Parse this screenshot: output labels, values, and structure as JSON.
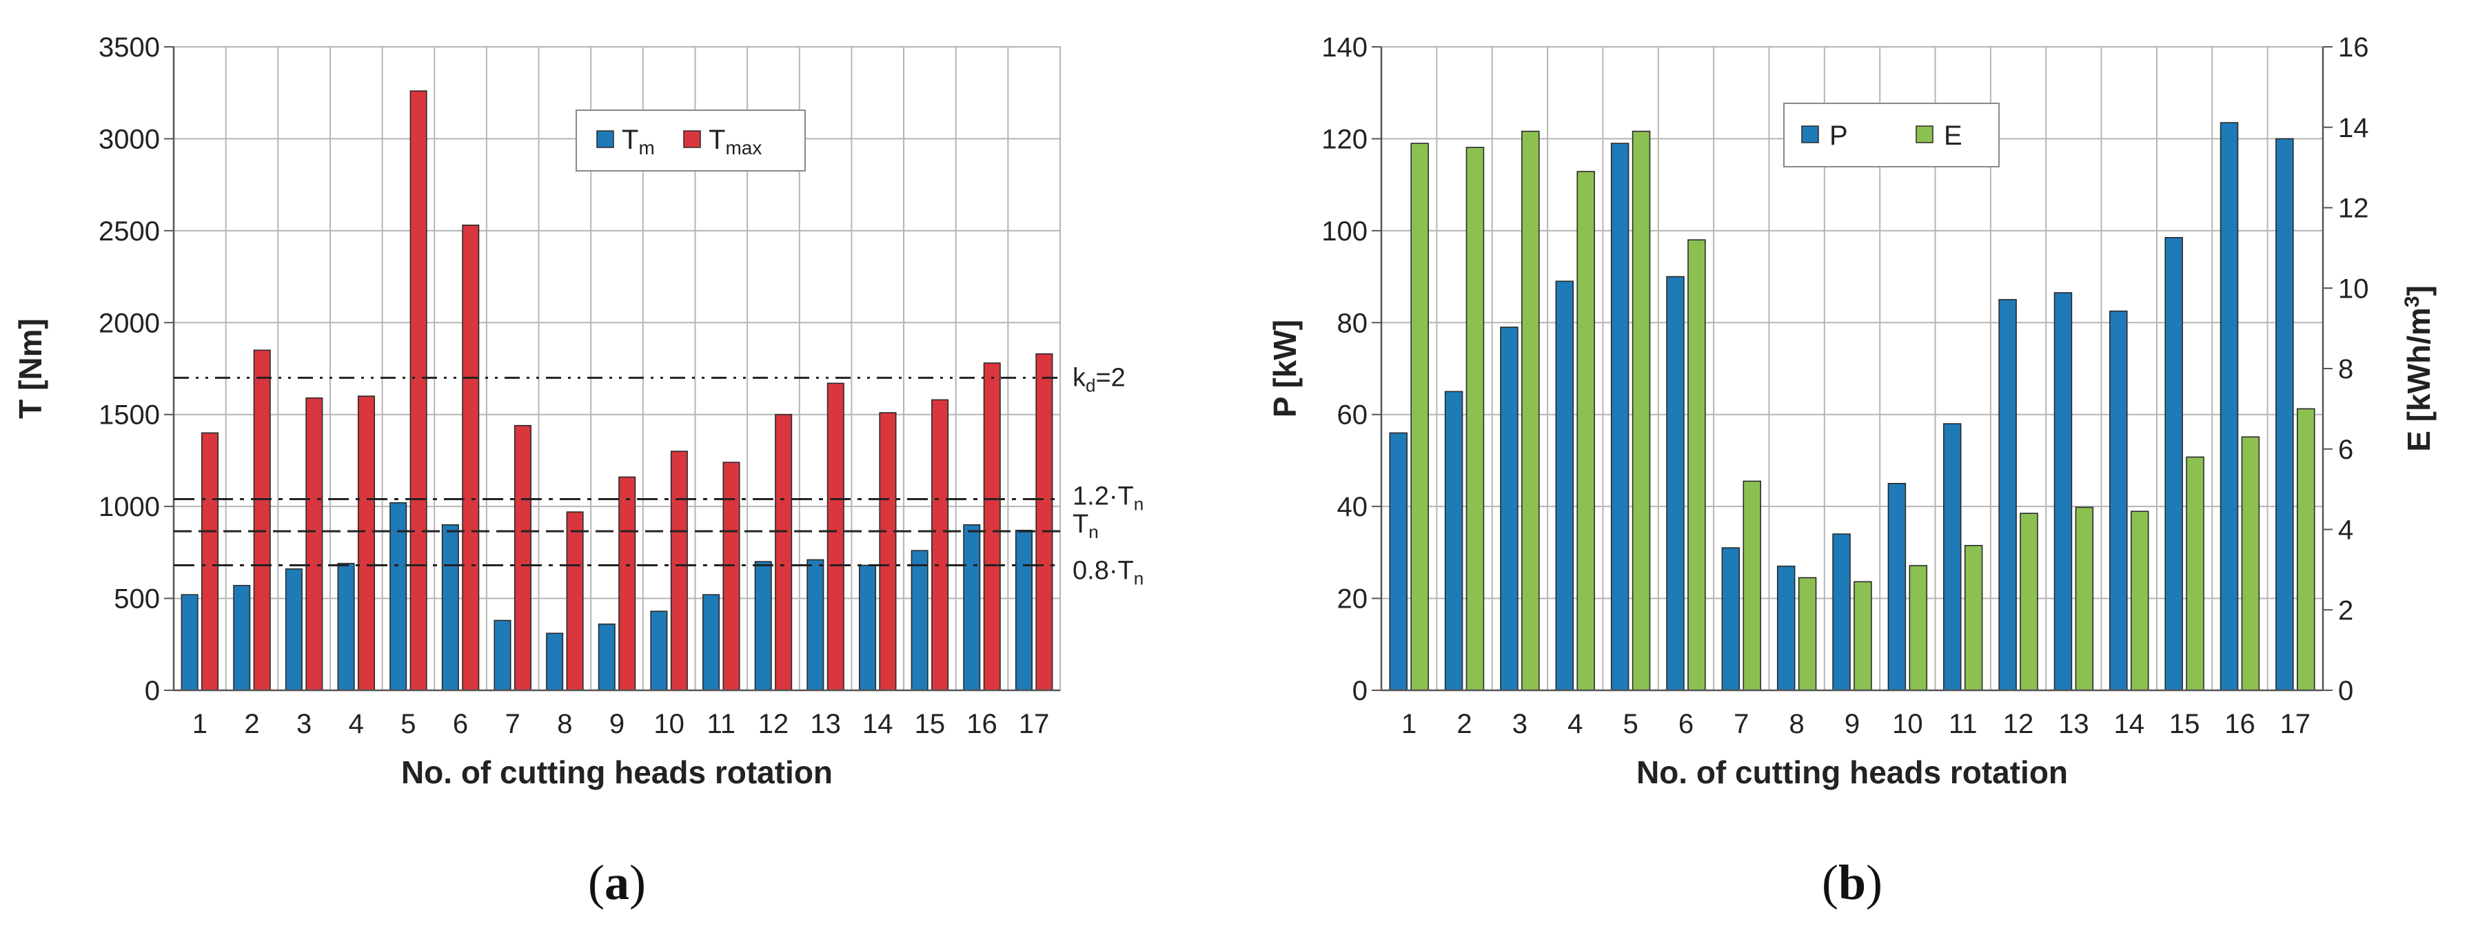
{
  "chart_data": [
    {
      "type": "bar",
      "caption": "(a)",
      "caption_letter": "a",
      "xlabel": "No. of cutting heads rotation",
      "ylabel": "T  [Nm]",
      "ylim": [
        0,
        3500
      ],
      "yticks": [
        0,
        500,
        1000,
        1500,
        2000,
        2500,
        3000,
        3500
      ],
      "grid": true,
      "legend_position": "top-center",
      "categories": [
        "1",
        "2",
        "3",
        "4",
        "5",
        "6",
        "7",
        "8",
        "9",
        "10",
        "11",
        "12",
        "13",
        "14",
        "15",
        "16",
        "17"
      ],
      "series": [
        {
          "name": "Tm",
          "name_main": "T",
          "name_sub": "m",
          "color": "#1f7ab8",
          "values": [
            520,
            570,
            660,
            690,
            1020,
            900,
            380,
            310,
            360,
            430,
            520,
            700,
            710,
            680,
            760,
            900,
            870
          ]
        },
        {
          "name": "Tmax",
          "name_main": "T",
          "name_sub": "max",
          "color": "#d9363e",
          "values": [
            1400,
            1850,
            1590,
            1600,
            3260,
            2530,
            1440,
            970,
            1160,
            1300,
            1240,
            1500,
            1670,
            1510,
            1580,
            1780,
            1830
          ]
        }
      ],
      "reference_lines": [
        {
          "label_main": "k",
          "label_sub": "d",
          "label_suffix": "=2",
          "value": 1700,
          "style": "dash-dot-dot"
        },
        {
          "label_main": "1.2·T",
          "label_sub": "n",
          "label_suffix": "",
          "value": 1040,
          "style": "dash-dot"
        },
        {
          "label_main": "T",
          "label_sub": "n",
          "label_suffix": "",
          "value": 865,
          "style": "dashed"
        },
        {
          "label_main": "0.8·T",
          "label_sub": "n",
          "label_suffix": "",
          "value": 680,
          "style": "dash-dot"
        }
      ]
    },
    {
      "type": "bar",
      "caption": "(b)",
      "caption_letter": "b",
      "xlabel": "No. of cutting heads rotation",
      "ylabel": "P  [kW]",
      "ylim": [
        0,
        140
      ],
      "yticks": [
        0,
        20,
        40,
        60,
        80,
        100,
        120,
        140
      ],
      "y2label_main": "E  [kWh/m",
      "y2label_sup": "3",
      "y2label_end": "]",
      "y2lim": [
        0,
        16
      ],
      "y2ticks": [
        0,
        2,
        4,
        6,
        8,
        10,
        12,
        14,
        16
      ],
      "grid": true,
      "legend_position": "top-left",
      "categories": [
        "1",
        "2",
        "3",
        "4",
        "5",
        "6",
        "7",
        "8",
        "9",
        "10",
        "11",
        "12",
        "13",
        "14",
        "15",
        "16",
        "17"
      ],
      "series": [
        {
          "name": "P",
          "axis": "left",
          "color": "#1f7ab8",
          "values": [
            56,
            65,
            79,
            89,
            119,
            90,
            31,
            27,
            34,
            45,
            58,
            85,
            86.5,
            82.5,
            98.5,
            123.5,
            120
          ]
        },
        {
          "name": "E",
          "axis": "right",
          "color": "#8cc152",
          "values": [
            13.6,
            13.5,
            13.9,
            12.9,
            13.9,
            11.2,
            5.2,
            2.8,
            2.7,
            3.1,
            3.6,
            4.4,
            4.55,
            4.45,
            5.8,
            6.3,
            7.0
          ]
        }
      ]
    }
  ]
}
